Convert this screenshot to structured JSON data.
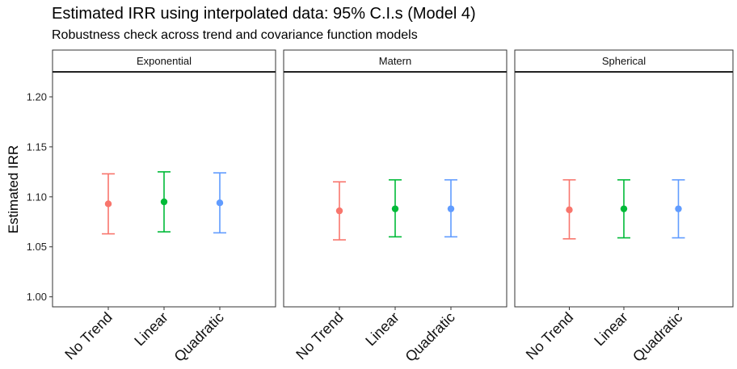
{
  "chart_data": {
    "type": "scatter",
    "title": "Estimated IRR using interpolated data: 95% C.I.s (Model 4)",
    "subtitle": "Robustness check across trend and covariance function models",
    "ylabel": "Estimated IRR",
    "xlabel": "",
    "ylim": [
      0.99,
      1.225
    ],
    "yticks": [
      "1.00",
      "1.05",
      "1.10",
      "1.15",
      "1.20"
    ],
    "categories": [
      "No Trend",
      "Linear",
      "Quadratic"
    ],
    "colors": [
      "#F8766D",
      "#00BA38",
      "#619CFF"
    ],
    "panels": [
      {
        "name": "Exponential",
        "points": [
          {
            "x": "No Trend",
            "y": 1.093,
            "lower": 1.063,
            "upper": 1.123
          },
          {
            "x": "Linear",
            "y": 1.095,
            "lower": 1.065,
            "upper": 1.125
          },
          {
            "x": "Quadratic",
            "y": 1.094,
            "lower": 1.064,
            "upper": 1.124
          }
        ]
      },
      {
        "name": "Matern",
        "points": [
          {
            "x": "No Trend",
            "y": 1.086,
            "lower": 1.057,
            "upper": 1.115
          },
          {
            "x": "Linear",
            "y": 1.088,
            "lower": 1.06,
            "upper": 1.117
          },
          {
            "x": "Quadratic",
            "y": 1.088,
            "lower": 1.06,
            "upper": 1.117
          }
        ]
      },
      {
        "name": "Spherical",
        "points": [
          {
            "x": "No Trend",
            "y": 1.087,
            "lower": 1.058,
            "upper": 1.117
          },
          {
            "x": "Linear",
            "y": 1.088,
            "lower": 1.059,
            "upper": 1.117
          },
          {
            "x": "Quadratic",
            "y": 1.088,
            "lower": 1.059,
            "upper": 1.117
          }
        ]
      }
    ],
    "grid": false,
    "legend": "none"
  }
}
